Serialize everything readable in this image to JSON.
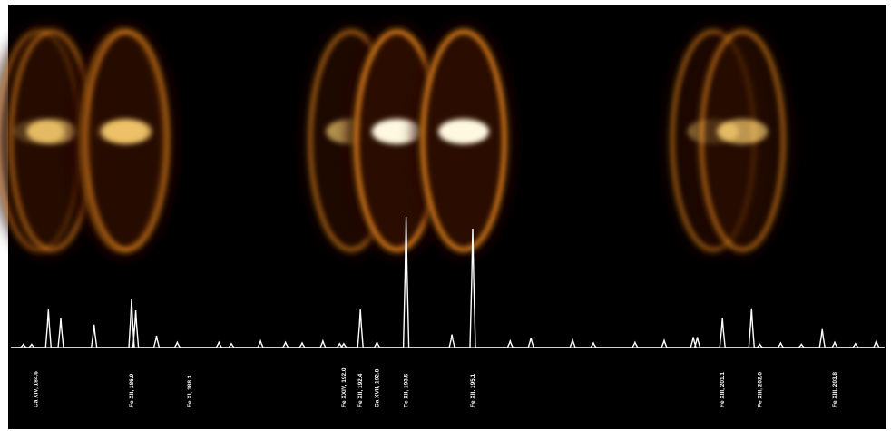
{
  "chart_data": {
    "type": "line",
    "title": "",
    "xlabel": "",
    "ylabel": "",
    "xlim": [
      184,
      205
    ],
    "background": "#000000",
    "trace_color": "#ffffff",
    "image_palette": [
      "#2a0d00",
      "#8a3a06",
      "#e0801c",
      "#ffd070",
      "#fff8e0"
    ],
    "series": [
      {
        "x": [
          184.3,
          184.5,
          184.9,
          185.2,
          186.0,
          186.9,
          187.0,
          187.5,
          188.0,
          189.0,
          189.3,
          190.0,
          190.6,
          191.0,
          191.5,
          191.9,
          192.0,
          192.4,
          192.8,
          193.5,
          194.6,
          195.1,
          196.0,
          196.5,
          197.5,
          198.0,
          199.0,
          199.7,
          200.4,
          200.5,
          201.1,
          201.8,
          202.0,
          202.5,
          203.0,
          203.5,
          203.8,
          204.3,
          204.8
        ],
        "y": [
          5,
          5,
          58,
          45,
          35,
          75,
          57,
          18,
          8,
          8,
          6,
          10,
          8,
          7,
          10,
          6,
          6,
          58,
          8,
          200,
          20,
          182,
          10,
          15,
          12,
          7,
          8,
          11,
          16,
          16,
          45,
          60,
          5,
          7,
          5,
          28,
          8,
          6,
          10
        ]
      }
    ],
    "labels": [
      {
        "text": "Ca XIV, 184.6",
        "x": 184.6
      },
      {
        "text": "Fe XII, 186.9",
        "x": 186.9
      },
      {
        "text": "Fe XI, 188.3",
        "x": 188.3
      },
      {
        "text": "Fe XXIV, 192.0",
        "x": 192.0
      },
      {
        "text": "Fe XII, 192.4",
        "x": 192.4
      },
      {
        "text": "Ca XVII, 192.8",
        "x": 192.8
      },
      {
        "text": "Fe XII, 193.5",
        "x": 193.5
      },
      {
        "text": "Fe XII, 195.1",
        "x": 195.1
      },
      {
        "text": "Fe XIII, 201.1",
        "x": 201.1
      },
      {
        "text": "Fe XIII, 202.0",
        "x": 202.0
      },
      {
        "text": "Fe XIII, 203.8",
        "x": 203.8
      }
    ]
  }
}
